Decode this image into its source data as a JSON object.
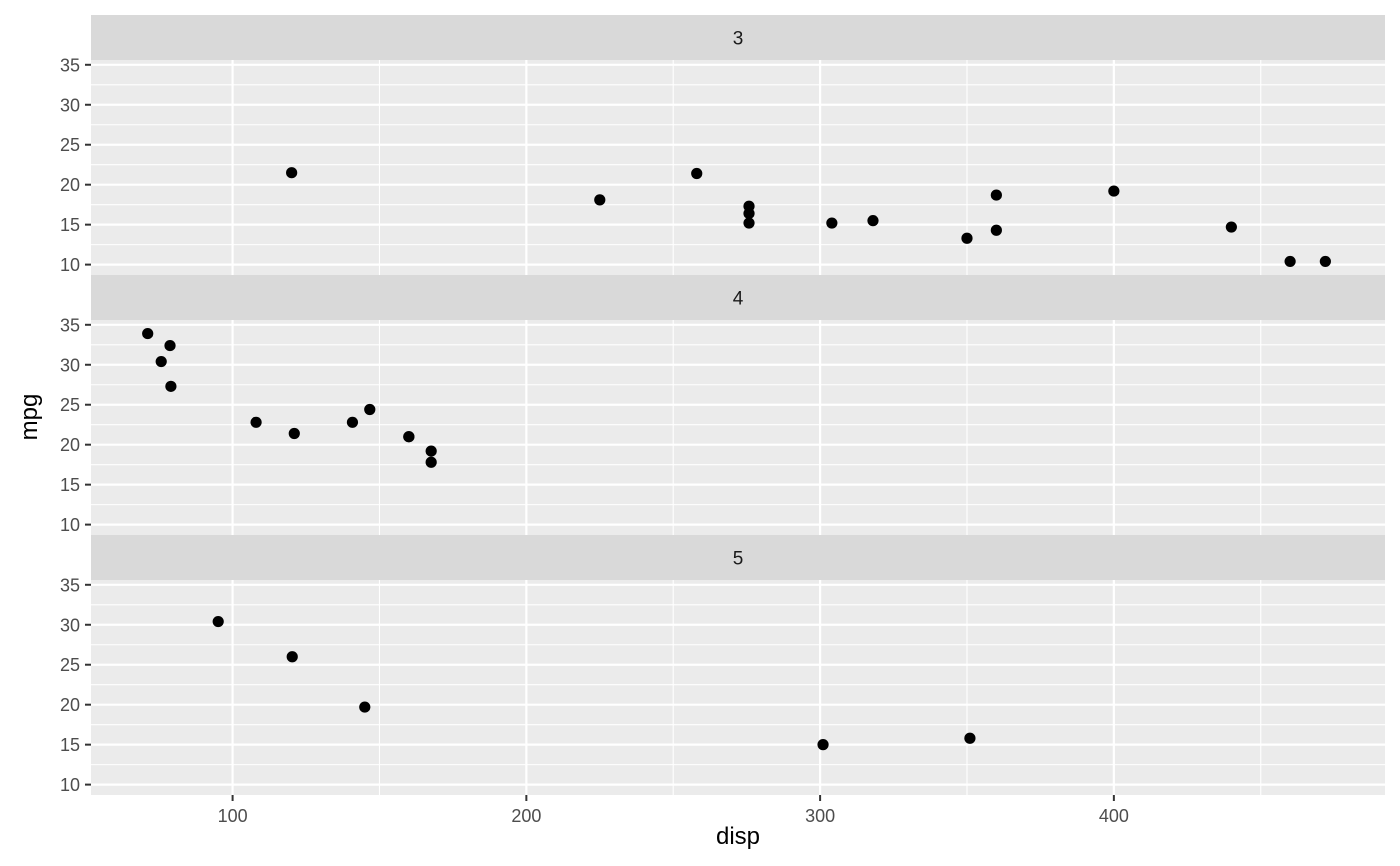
{
  "chart_data": {
    "type": "scatter",
    "facet_variable": "gear",
    "xlabel": "disp",
    "ylabel": "mpg",
    "xlim": [
      51.8,
      492.3
    ],
    "ylim": [
      8.7,
      35.6
    ],
    "x_ticks": [
      100,
      200,
      300,
      400
    ],
    "y_ticks": [
      10,
      15,
      20,
      25,
      30,
      35
    ],
    "grid": true,
    "colors": {
      "panel_bg": "#ebebeb",
      "strip_bg": "#d9d9d9",
      "grid": "#ffffff",
      "point": "#000000"
    },
    "panels": [
      {
        "label": "3",
        "points": [
          {
            "x": 258,
            "y": 21.4
          },
          {
            "x": 360,
            "y": 18.7
          },
          {
            "x": 225,
            "y": 18.1
          },
          {
            "x": 360,
            "y": 14.3
          },
          {
            "x": 275.8,
            "y": 16.4
          },
          {
            "x": 275.8,
            "y": 17.3
          },
          {
            "x": 275.8,
            "y": 15.2
          },
          {
            "x": 472,
            "y": 10.4
          },
          {
            "x": 460,
            "y": 10.4
          },
          {
            "x": 440,
            "y": 14.7
          },
          {
            "x": 120.1,
            "y": 21.5
          },
          {
            "x": 318,
            "y": 15.5
          },
          {
            "x": 304,
            "y": 15.2
          },
          {
            "x": 350,
            "y": 13.3
          },
          {
            "x": 400,
            "y": 19.2
          }
        ]
      },
      {
        "label": "4",
        "points": [
          {
            "x": 160,
            "y": 21
          },
          {
            "x": 160,
            "y": 21
          },
          {
            "x": 108,
            "y": 22.8
          },
          {
            "x": 146.7,
            "y": 24.4
          },
          {
            "x": 140.8,
            "y": 22.8
          },
          {
            "x": 167.6,
            "y": 19.2
          },
          {
            "x": 167.6,
            "y": 17.8
          },
          {
            "x": 78.7,
            "y": 32.4
          },
          {
            "x": 75.7,
            "y": 30.4
          },
          {
            "x": 71.1,
            "y": 33.9
          },
          {
            "x": 79,
            "y": 27.3
          },
          {
            "x": 121,
            "y": 21.4
          }
        ]
      },
      {
        "label": "5",
        "points": [
          {
            "x": 120.3,
            "y": 26
          },
          {
            "x": 95.1,
            "y": 30.4
          },
          {
            "x": 351,
            "y": 15.8
          },
          {
            "x": 145,
            "y": 19.7
          },
          {
            "x": 301,
            "y": 15
          }
        ]
      }
    ]
  }
}
